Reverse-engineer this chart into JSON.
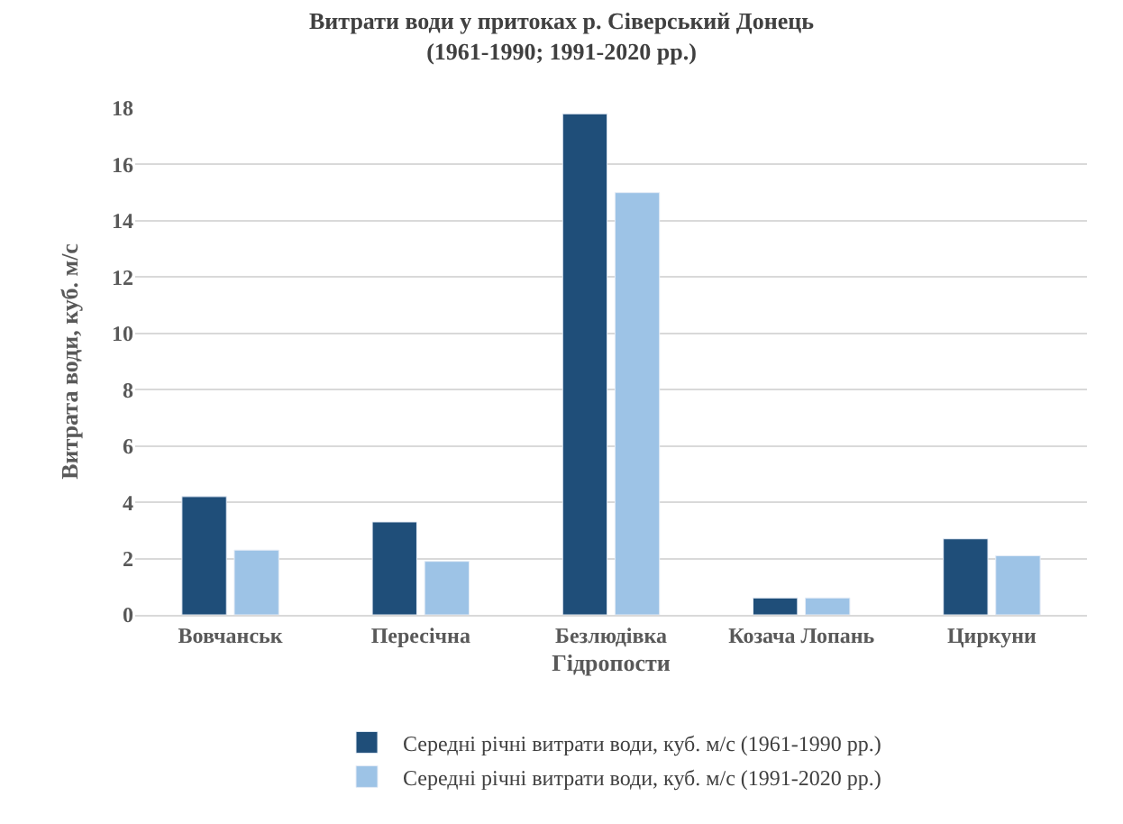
{
  "chart_data": {
    "type": "bar",
    "title": "Витрати води у притоках р. Сіверський Донець\n(1961-1990; 1991-2020 рр.)",
    "xlabel": "Гідропости",
    "ylabel": "Витрата води, куб. м/с",
    "categories": [
      "Вовчанськ",
      "Пересічна",
      "Безлюдівка",
      "Козача Лопань",
      "Циркуни"
    ],
    "series": [
      {
        "name": "Середні річні витрати води, куб. м/с (1961-1990 рр.)",
        "color": "#1f4e79",
        "values": [
          4.2,
          3.3,
          17.8,
          0.6,
          2.7
        ]
      },
      {
        "name": "Середні річні витрати води, куб. м/с (1991-2020 рр.)",
        "color": "#9dc3e6",
        "values": [
          2.3,
          1.9,
          15.0,
          0.6,
          2.1
        ]
      }
    ],
    "ylim": [
      0,
      18
    ],
    "yticks": [
      0,
      2,
      4,
      6,
      8,
      10,
      12,
      14,
      16,
      18
    ],
    "grid": "y",
    "legend": "bottom"
  }
}
